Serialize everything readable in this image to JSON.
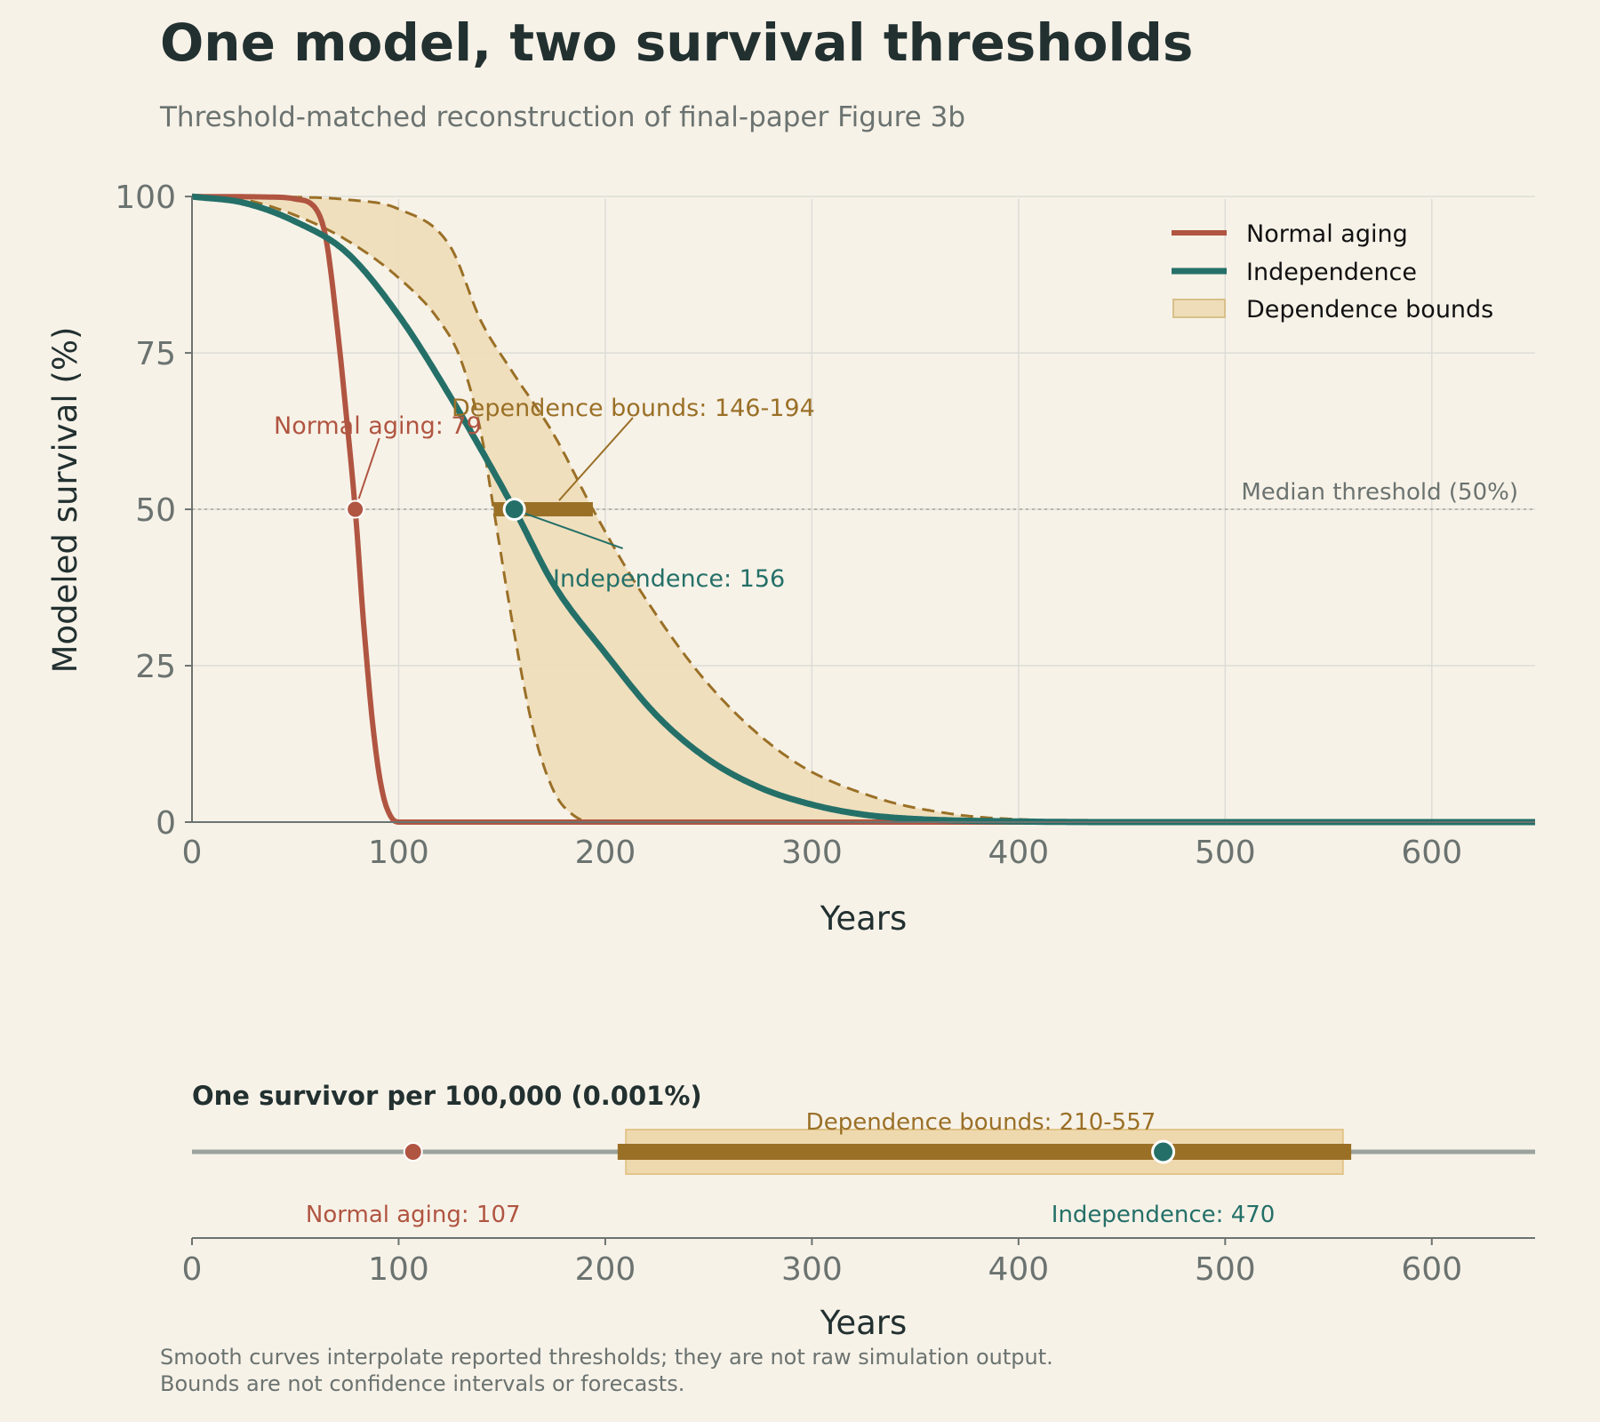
{
  "title": "One model, two survival thresholds",
  "subtitle": "Threshold-matched reconstruction of final-paper Figure 3b",
  "footnote": [
    "Smooth curves interpolate reported thresholds; they are not raw simulation output.",
    "Bounds are not confidence intervals or forecasts."
  ],
  "colors": {
    "background": "#f7f2e8",
    "normal": "#b05541",
    "independence": "#247068",
    "dependence_line": "#9a7027",
    "dependence_fill": "#eeddb8",
    "grid": "#dcdcd6",
    "axis": "#6b7370",
    "text_dark": "#223030",
    "muted": "#6b7370"
  },
  "chart_data": [
    {
      "type": "line",
      "xlabel": "Years",
      "ylabel": "Modeled survival (%)",
      "xlim": [
        0,
        650
      ],
      "ylim": [
        0,
        103
      ],
      "x_ticks": [
        0,
        100,
        200,
        300,
        400,
        500,
        600
      ],
      "y_ticks": [
        0,
        25,
        50,
        75,
        100
      ],
      "grid": true,
      "legend_position": "top-right",
      "series": [
        {
          "name": "Normal aging",
          "style": "solid",
          "color": "#b05541",
          "x": [
            0,
            40,
            50,
            60,
            65,
            70,
            75,
            79,
            83,
            88,
            92,
            96,
            100,
            650
          ],
          "y": [
            100,
            99.9,
            99.6,
            98,
            93,
            80,
            64,
            50,
            32,
            14,
            5,
            1,
            0,
            0
          ]
        },
        {
          "name": "Independence",
          "style": "solid",
          "color": "#247068",
          "x": [
            0,
            25,
            50,
            75,
            100,
            125,
            156,
            175,
            200,
            225,
            250,
            275,
            300,
            325,
            350,
            400,
            450,
            650
          ],
          "y": [
            100,
            99,
            96,
            91,
            81,
            68,
            50,
            38,
            27,
            17,
            10,
            5.5,
            2.8,
            1.2,
            0.5,
            0.1,
            0,
            0
          ]
        },
        {
          "name": "Dependence bounds",
          "role": "band",
          "color": "#9a7027",
          "lower": {
            "x": [
              0,
              25,
              50,
              75,
              100,
              120,
              130,
              140,
              146,
              155,
              165,
              175,
              185,
              195,
              650
            ],
            "y": [
              100,
              99.5,
              97,
              93,
              87,
              80,
              74,
              62,
              50,
              32,
              15,
              5,
              1,
              0,
              0
            ]
          },
          "upper": {
            "x": [
              0,
              50,
              75,
              100,
              125,
              140,
              155,
              175,
              194,
              215,
              250,
              290,
              330,
              370,
              410,
              440,
              650
            ],
            "y": [
              100,
              99.9,
              99.5,
              98,
              92,
              80,
              72,
              62,
              50,
              38,
              22,
              10,
              4,
              1.2,
              0.3,
              0,
              0
            ]
          }
        }
      ],
      "threshold": {
        "y": 50,
        "label": "Median threshold (50%)"
      },
      "markers": {
        "normal": {
          "x": 79,
          "y": 50
        },
        "independence": {
          "x": 156,
          "y": 50
        },
        "dependence_range": {
          "x": [
            146,
            194
          ],
          "y": 50
        }
      },
      "annotations": {
        "normal": {
          "text": "Normal aging: 79"
        },
        "dependence": {
          "text": "Dependence bounds: 146-194"
        },
        "independence": {
          "text": "Independence: 156"
        }
      }
    },
    {
      "type": "interval",
      "title": "One survivor per 100,000 (0.001%)",
      "xlabel": "Years",
      "xlim": [
        0,
        650
      ],
      "x_ticks": [
        0,
        100,
        200,
        300,
        400,
        500,
        600
      ],
      "points": {
        "normal": {
          "x": 107,
          "label": "Normal aging: 107"
        },
        "independence": {
          "x": 470,
          "label": "Independence: 470"
        }
      },
      "band": {
        "x": [
          210,
          557
        ],
        "label": "Dependence bounds: 210-557"
      },
      "range_bar": {
        "x": [
          206,
          561
        ]
      }
    }
  ]
}
